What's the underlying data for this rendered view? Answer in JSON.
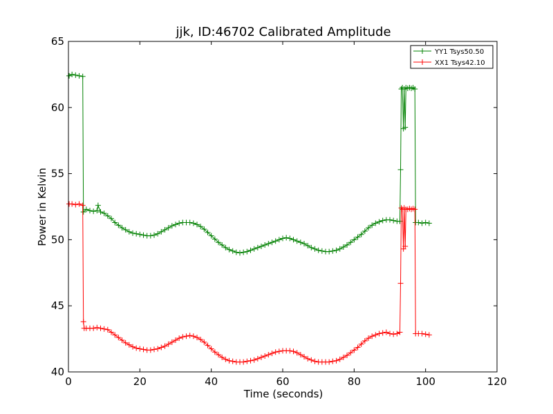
{
  "chart_data": {
    "type": "line",
    "title": "jjk, ID:46702 Calibrated Amplitude",
    "xlabel": "Time (seconds)",
    "ylabel": "Power in Kelvin",
    "xlim": [
      0,
      120
    ],
    "ylim": [
      40,
      65
    ],
    "xticks": [
      "0",
      "20",
      "40",
      "60",
      "80",
      "100",
      "120"
    ],
    "yticks": [
      "40",
      "45",
      "50",
      "55",
      "60",
      "65"
    ],
    "grid": false,
    "legend_position": "top-right",
    "marker": "+",
    "series": [
      {
        "name": "YY1 Tsys50.50",
        "color": "#008000",
        "points": [
          [
            0.2,
            62.4
          ],
          [
            1,
            62.5
          ],
          [
            2,
            62.45
          ],
          [
            3,
            62.4
          ],
          [
            4,
            62.35
          ],
          [
            4.2,
            52.1
          ],
          [
            5,
            52.3
          ],
          [
            6,
            52.2
          ],
          [
            7,
            52.15
          ],
          [
            8,
            52.2
          ],
          [
            8.3,
            52.6
          ],
          [
            9,
            52.1
          ],
          [
            10,
            52.0
          ],
          [
            11,
            51.8
          ],
          [
            12,
            51.6
          ],
          [
            13,
            51.3
          ],
          [
            14,
            51.1
          ],
          [
            15,
            50.9
          ],
          [
            16,
            50.75
          ],
          [
            17,
            50.6
          ],
          [
            18,
            50.5
          ],
          [
            19,
            50.45
          ],
          [
            20,
            50.4
          ],
          [
            21,
            50.35
          ],
          [
            22,
            50.3
          ],
          [
            23,
            50.3
          ],
          [
            24,
            50.35
          ],
          [
            25,
            50.45
          ],
          [
            26,
            50.6
          ],
          [
            27,
            50.75
          ],
          [
            28,
            50.9
          ],
          [
            29,
            51.05
          ],
          [
            30,
            51.15
          ],
          [
            31,
            51.25
          ],
          [
            32,
            51.3
          ],
          [
            33,
            51.3
          ],
          [
            34,
            51.3
          ],
          [
            35,
            51.25
          ],
          [
            36,
            51.15
          ],
          [
            37,
            51.0
          ],
          [
            38,
            50.8
          ],
          [
            39,
            50.55
          ],
          [
            40,
            50.3
          ],
          [
            41,
            50.05
          ],
          [
            42,
            49.8
          ],
          [
            43,
            49.6
          ],
          [
            44,
            49.4
          ],
          [
            45,
            49.25
          ],
          [
            46,
            49.15
          ],
          [
            47,
            49.05
          ],
          [
            48,
            49.0
          ],
          [
            49,
            49.05
          ],
          [
            50,
            49.1
          ],
          [
            51,
            49.2
          ],
          [
            52,
            49.3
          ],
          [
            53,
            49.4
          ],
          [
            54,
            49.5
          ],
          [
            55,
            49.6
          ],
          [
            56,
            49.7
          ],
          [
            57,
            49.8
          ],
          [
            58,
            49.9
          ],
          [
            59,
            50.0
          ],
          [
            60,
            50.1
          ],
          [
            61,
            50.15
          ],
          [
            62,
            50.1
          ],
          [
            63,
            50.0
          ],
          [
            64,
            49.9
          ],
          [
            65,
            49.8
          ],
          [
            66,
            49.7
          ],
          [
            67,
            49.55
          ],
          [
            68,
            49.4
          ],
          [
            69,
            49.3
          ],
          [
            70,
            49.2
          ],
          [
            71,
            49.15
          ],
          [
            72,
            49.1
          ],
          [
            73,
            49.1
          ],
          [
            74,
            49.15
          ],
          [
            75,
            49.2
          ],
          [
            76,
            49.3
          ],
          [
            77,
            49.45
          ],
          [
            78,
            49.6
          ],
          [
            79,
            49.8
          ],
          [
            80,
            50.0
          ],
          [
            81,
            50.2
          ],
          [
            82,
            50.4
          ],
          [
            83,
            50.65
          ],
          [
            84,
            50.9
          ],
          [
            85,
            51.1
          ],
          [
            86,
            51.25
          ],
          [
            87,
            51.35
          ],
          [
            88,
            51.45
          ],
          [
            89,
            51.5
          ],
          [
            90,
            51.5
          ],
          [
            91,
            51.45
          ],
          [
            92,
            51.4
          ],
          [
            92.8,
            51.4
          ],
          [
            93.0,
            55.3
          ],
          [
            93.2,
            61.4
          ],
          [
            93.5,
            61.5
          ],
          [
            93.8,
            58.4
          ],
          [
            94.0,
            61.4
          ],
          [
            94.3,
            58.5
          ],
          [
            94.5,
            61.5
          ],
          [
            95,
            61.45
          ],
          [
            95.5,
            61.5
          ],
          [
            96,
            61.45
          ],
          [
            96.5,
            61.5
          ],
          [
            97,
            61.4
          ],
          [
            97.2,
            51.3
          ],
          [
            98,
            51.3
          ],
          [
            99,
            51.25
          ],
          [
            100,
            51.3
          ],
          [
            101,
            51.25
          ]
        ]
      },
      {
        "name": "XX1 Tsys42.10",
        "color": "#ff0000",
        "points": [
          [
            0.2,
            52.7
          ],
          [
            1,
            52.7
          ],
          [
            2,
            52.65
          ],
          [
            3,
            52.7
          ],
          [
            4,
            52.6
          ],
          [
            4.2,
            43.8
          ],
          [
            4.4,
            43.3
          ],
          [
            5,
            43.3
          ],
          [
            6,
            43.3
          ],
          [
            7,
            43.3
          ],
          [
            8,
            43.35
          ],
          [
            9,
            43.3
          ],
          [
            10,
            43.25
          ],
          [
            11,
            43.2
          ],
          [
            12,
            43.0
          ],
          [
            13,
            42.8
          ],
          [
            14,
            42.6
          ],
          [
            15,
            42.4
          ],
          [
            16,
            42.2
          ],
          [
            17,
            42.05
          ],
          [
            18,
            41.9
          ],
          [
            19,
            41.8
          ],
          [
            20,
            41.75
          ],
          [
            21,
            41.7
          ],
          [
            22,
            41.65
          ],
          [
            23,
            41.65
          ],
          [
            24,
            41.7
          ],
          [
            25,
            41.75
          ],
          [
            26,
            41.85
          ],
          [
            27,
            41.95
          ],
          [
            28,
            42.1
          ],
          [
            29,
            42.25
          ],
          [
            30,
            42.4
          ],
          [
            31,
            42.55
          ],
          [
            32,
            42.65
          ],
          [
            33,
            42.7
          ],
          [
            34,
            42.75
          ],
          [
            35,
            42.7
          ],
          [
            36,
            42.6
          ],
          [
            37,
            42.45
          ],
          [
            38,
            42.25
          ],
          [
            39,
            42.0
          ],
          [
            40,
            41.75
          ],
          [
            41,
            41.5
          ],
          [
            42,
            41.3
          ],
          [
            43,
            41.1
          ],
          [
            44,
            40.95
          ],
          [
            45,
            40.85
          ],
          [
            46,
            40.8
          ],
          [
            47,
            40.75
          ],
          [
            48,
            40.75
          ],
          [
            49,
            40.75
          ],
          [
            50,
            40.8
          ],
          [
            51,
            40.85
          ],
          [
            52,
            40.9
          ],
          [
            53,
            41.0
          ],
          [
            54,
            41.1
          ],
          [
            55,
            41.2
          ],
          [
            56,
            41.3
          ],
          [
            57,
            41.4
          ],
          [
            58,
            41.5
          ],
          [
            59,
            41.55
          ],
          [
            60,
            41.6
          ],
          [
            61,
            41.6
          ],
          [
            62,
            41.6
          ],
          [
            63,
            41.55
          ],
          [
            64,
            41.45
          ],
          [
            65,
            41.3
          ],
          [
            66,
            41.15
          ],
          [
            67,
            41.0
          ],
          [
            68,
            40.9
          ],
          [
            69,
            40.8
          ],
          [
            70,
            40.75
          ],
          [
            71,
            40.75
          ],
          [
            72,
            40.75
          ],
          [
            73,
            40.75
          ],
          [
            74,
            40.8
          ],
          [
            75,
            40.85
          ],
          [
            76,
            40.95
          ],
          [
            77,
            41.1
          ],
          [
            78,
            41.25
          ],
          [
            79,
            41.45
          ],
          [
            80,
            41.65
          ],
          [
            81,
            41.85
          ],
          [
            82,
            42.1
          ],
          [
            83,
            42.35
          ],
          [
            84,
            42.55
          ],
          [
            85,
            42.7
          ],
          [
            86,
            42.8
          ],
          [
            87,
            42.9
          ],
          [
            88,
            42.95
          ],
          [
            89,
            43.0
          ],
          [
            90,
            42.9
          ],
          [
            91,
            42.85
          ],
          [
            92,
            42.9
          ],
          [
            92.8,
            43.0
          ],
          [
            93.0,
            46.7
          ],
          [
            93.2,
            52.4
          ],
          [
            93.5,
            52.3
          ],
          [
            93.8,
            49.3
          ],
          [
            94.0,
            52.4
          ],
          [
            94.3,
            49.5
          ],
          [
            94.5,
            52.3
          ],
          [
            95,
            52.3
          ],
          [
            95.5,
            52.35
          ],
          [
            96,
            52.3
          ],
          [
            96.5,
            52.35
          ],
          [
            97,
            52.3
          ],
          [
            97.2,
            42.9
          ],
          [
            98,
            42.9
          ],
          [
            99,
            42.9
          ],
          [
            100,
            42.85
          ],
          [
            101,
            42.8
          ]
        ]
      }
    ]
  }
}
